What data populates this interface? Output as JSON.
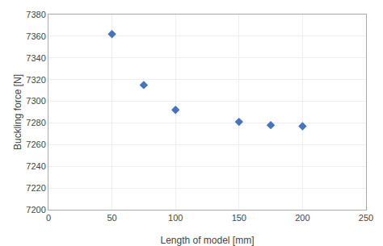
{
  "chart_data": {
    "type": "scatter",
    "x": [
      50,
      75,
      100,
      150,
      175,
      200
    ],
    "values": [
      7362,
      7315,
      7292,
      7281,
      7278,
      7277
    ],
    "xlabel": "Length of model [mm]",
    "ylabel": "Buckling force [N]",
    "xlim": [
      0,
      250
    ],
    "ylim": [
      7200,
      7380
    ],
    "xticks": [
      0,
      50,
      100,
      150,
      200,
      250
    ],
    "yticks": [
      7200,
      7220,
      7240,
      7260,
      7280,
      7300,
      7320,
      7340,
      7360,
      7380
    ],
    "color": "#4472c4",
    "marker": "diamond",
    "grid": true
  }
}
